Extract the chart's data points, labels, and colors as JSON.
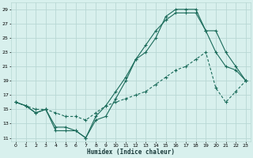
{
  "xlabel": "Humidex (Indice chaleur)",
  "bg_color": "#d8f0ed",
  "grid_color": "#b8d8d4",
  "line_color": "#1a6b5a",
  "xlim": [
    -0.5,
    23.5
  ],
  "ylim": [
    10.5,
    30
  ],
  "xticks": [
    0,
    1,
    2,
    3,
    4,
    5,
    6,
    7,
    8,
    9,
    10,
    11,
    12,
    13,
    14,
    15,
    16,
    17,
    18,
    19,
    20,
    21,
    22,
    23
  ],
  "yticks": [
    11,
    13,
    15,
    17,
    19,
    21,
    23,
    25,
    27,
    29
  ],
  "line1_x": [
    0,
    1,
    2,
    3,
    4,
    5,
    6,
    7,
    8,
    9,
    10,
    11,
    12,
    13,
    14,
    15,
    16,
    17,
    18,
    19,
    20,
    21,
    22,
    23
  ],
  "line1_y": [
    16,
    15.5,
    14.5,
    15,
    12.5,
    12.5,
    12,
    11,
    13.5,
    14,
    16.5,
    19,
    22,
    23,
    25,
    28,
    29,
    29,
    29,
    26,
    23,
    21,
    20.5,
    19
  ],
  "line2_x": [
    0,
    1,
    2,
    3,
    4,
    5,
    6,
    7,
    8,
    9,
    10,
    11,
    12,
    13,
    14,
    15,
    16,
    17,
    18,
    19,
    20,
    21,
    22,
    23
  ],
  "line2_y": [
    16,
    15.5,
    14.5,
    15,
    12,
    12,
    12,
    11,
    14,
    15.5,
    17.5,
    19.5,
    22,
    24,
    26,
    27.5,
    28.5,
    28.5,
    28.5,
    26,
    26,
    23,
    21,
    19
  ],
  "line3_x": [
    0,
    1,
    2,
    3,
    4,
    5,
    6,
    7,
    8,
    9,
    10,
    11,
    12,
    13,
    14,
    15,
    16,
    17,
    18,
    19,
    20,
    21,
    22,
    23
  ],
  "line3_y": [
    16,
    15.5,
    15,
    15,
    14.5,
    14,
    14,
    13.5,
    14.5,
    15.5,
    16,
    16.5,
    17,
    17.5,
    18.5,
    19.5,
    20.5,
    21,
    22,
    23,
    18,
    16,
    17.5,
    19
  ]
}
